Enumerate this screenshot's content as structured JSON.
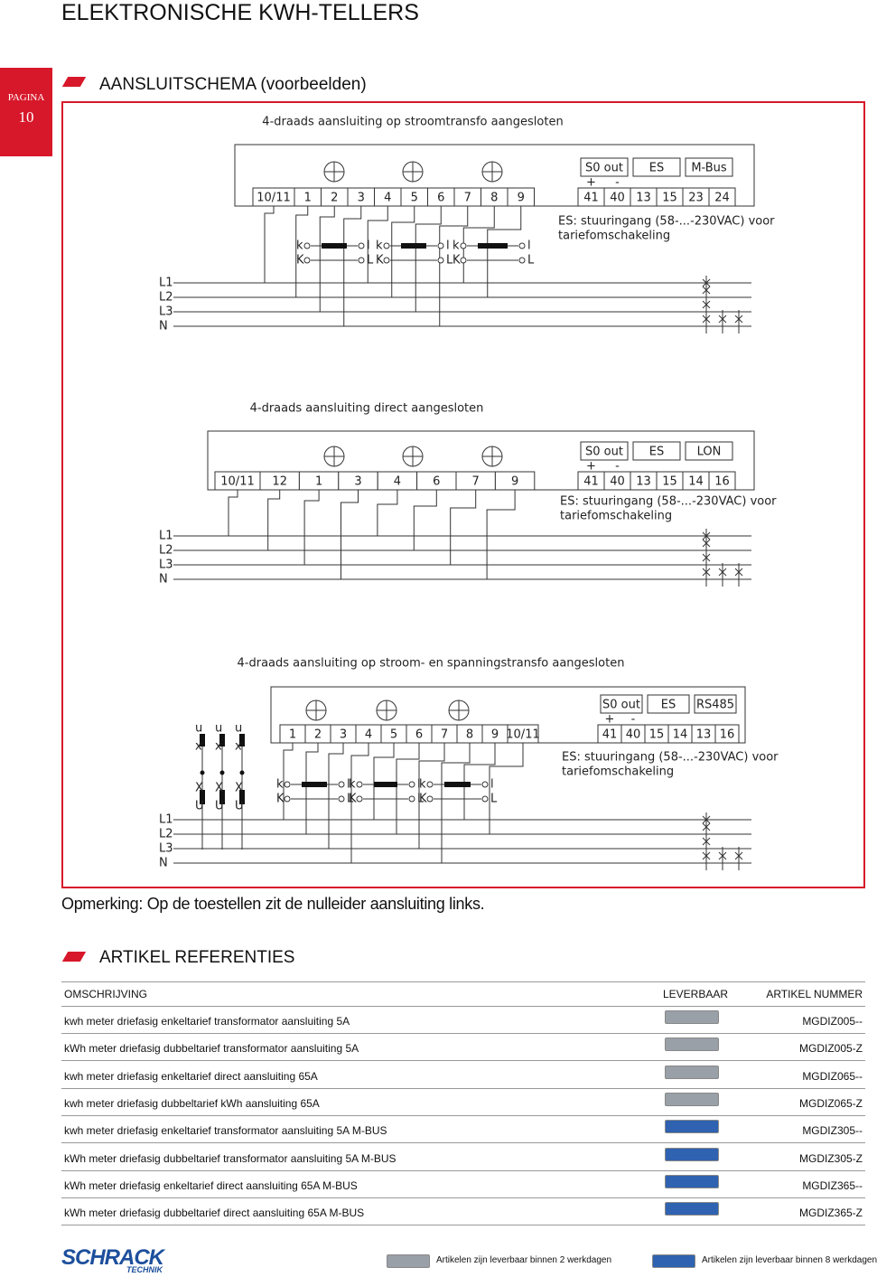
{
  "header": {
    "title": "ELEKTRONISCHE KWH-TELLERS",
    "page_label": "PAGINA",
    "page_number": "10"
  },
  "section1": {
    "title": "AANSLUITSCHEMA (voorbeelden)"
  },
  "diagrams": [
    {
      "title": "4-draads aansluiting op stroomtransfo aangesloten",
      "terminals": [
        "10/11",
        "1",
        "2",
        "3",
        "4",
        "5",
        "6",
        "7",
        "8",
        "9"
      ],
      "outputs": [
        {
          "label": "S0 out",
          "pins": [
            "41",
            "40"
          ]
        },
        {
          "label": "ES",
          "pins": [
            "13",
            "15"
          ]
        },
        {
          "label": "M-Bus",
          "pins": [
            "23",
            "24"
          ]
        }
      ],
      "note": [
        "ES: stuuringang (58-...-230VAC) voor",
        "tariefomschakeling"
      ],
      "phases": [
        "L1",
        "L2",
        "L3",
        "N"
      ]
    },
    {
      "title": "4-draads aansluiting direct aangesloten",
      "terminals": [
        "10/11",
        "12",
        "1",
        "3",
        "4",
        "6",
        "7",
        "9"
      ],
      "outputs": [
        {
          "label": "S0 out",
          "pins": [
            "41",
            "40"
          ]
        },
        {
          "label": "ES",
          "pins": [
            "13",
            "15"
          ]
        },
        {
          "label": "LON",
          "pins": [
            "14",
            "16"
          ]
        }
      ],
      "note": [
        "ES: stuuringang (58-...-230VAC) voor",
        "tariefomschakeling"
      ],
      "phases": [
        "L1",
        "L2",
        "L3",
        "N"
      ]
    },
    {
      "title": "4-draads aansluiting op stroom- en spanningstransfo aangesloten",
      "terminals": [
        "1",
        "2",
        "3",
        "4",
        "5",
        "6",
        "7",
        "8",
        "9",
        "10/11"
      ],
      "outputs": [
        {
          "label": "S0 out",
          "pins": [
            "41",
            "40"
          ]
        },
        {
          "label": "ES",
          "pins": [
            "15",
            "14"
          ]
        },
        {
          "label": "RS485",
          "pins": [
            "13",
            "16"
          ]
        }
      ],
      "note": [
        "ES: stuuringang (58-...-230VAC) voor",
        "tariefomschakeling"
      ],
      "phases": [
        "L1",
        "L2",
        "L3",
        "N"
      ]
    }
  ],
  "polarity": [
    "+",
    "-"
  ],
  "ct_labels": [
    "k",
    "l",
    "K",
    "L"
  ],
  "vt_labels": [
    "u",
    "x",
    "X",
    "U"
  ],
  "remark": "Opmerking: Op de toestellen zit de nulleider aansluiting links.",
  "section2": {
    "title": "ARTIKEL REFERENTIES"
  },
  "table": {
    "headers": [
      "OMSCHRIJVING",
      "LEVERBAAR",
      "ARTIKEL NUMMER"
    ],
    "rows": [
      {
        "description": "kwh meter driefasig enkeltarief transformator aansluiting 5A",
        "icon_color": "#9aa0a8",
        "code": "MGDIZ005--"
      },
      {
        "description": "kWh meter driefasig dubbeltarief transformator aansluiting 5A",
        "icon_color": "#9aa0a8",
        "code": "MGDIZ005-Z"
      },
      {
        "description": "kwh meter driefasig enkeltarief direct aansluiting 65A",
        "icon_color": "#9aa0a8",
        "code": "MGDIZ065--"
      },
      {
        "description": "kwh meter driefasig dubbeltarief kWh aansluiting 65A",
        "icon_color": "#9aa0a8",
        "code": "MGDIZ065-Z"
      },
      {
        "description": "kwh meter driefasig enkeltarief transformator aansluiting 5A M-BUS",
        "icon_color": "#2f62b0",
        "code": "MGDIZ305--"
      },
      {
        "description": "kWh meter driefasig dubbeltarief transformator aansluiting 5A M-BUS",
        "icon_color": "#2f62b0",
        "code": "MGDIZ305-Z"
      },
      {
        "description": "kWh meter driefasig enkeltarief direct aansluiting 65A M-BUS",
        "icon_color": "#2f62b0",
        "code": "MGDIZ365--"
      },
      {
        "description": "kWh meter driefasig dubbeltarief direct aansluiting 65A M-BUS",
        "icon_color": "#2f62b0",
        "code": "MGDIZ365-Z"
      }
    ]
  },
  "footer": {
    "logo": "SCHRACK",
    "logo_sub": "TECHNIK",
    "legend": [
      {
        "text": "Artikelen zijn leverbaar binnen 2 werkdagen",
        "icon_color": "#9aa0a8"
      },
      {
        "text": "Artikelen zijn leverbaar binnen 8 werkdagen",
        "icon_color": "#2f62b0"
      }
    ]
  }
}
